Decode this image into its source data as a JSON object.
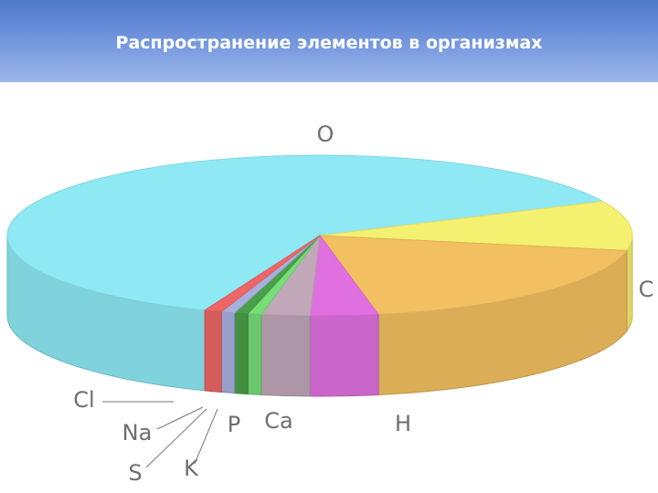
{
  "header": {
    "title": "Распространение элементов в организмах",
    "background": "#5a82d1"
  },
  "chart_data": {
    "type": "pie",
    "style": "3d",
    "title": "Распространение элементов в организмах",
    "series": [
      {
        "labels": [
          "O",
          "C",
          "H",
          "Ca",
          "P",
          "K",
          "S",
          "Na",
          "Cl"
        ],
        "values": [
          62,
          10,
          19,
          3.5,
          2.5,
          0.7,
          0.7,
          0.7,
          0.9
        ],
        "colors": [
          "#8ee9f4",
          "#f4f070",
          "#f2c060",
          "#e070e0",
          "#c0a8b8",
          "#77dd77",
          "#4aa04a",
          "#a8b0e0",
          "#ee6666"
        ]
      }
    ]
  }
}
